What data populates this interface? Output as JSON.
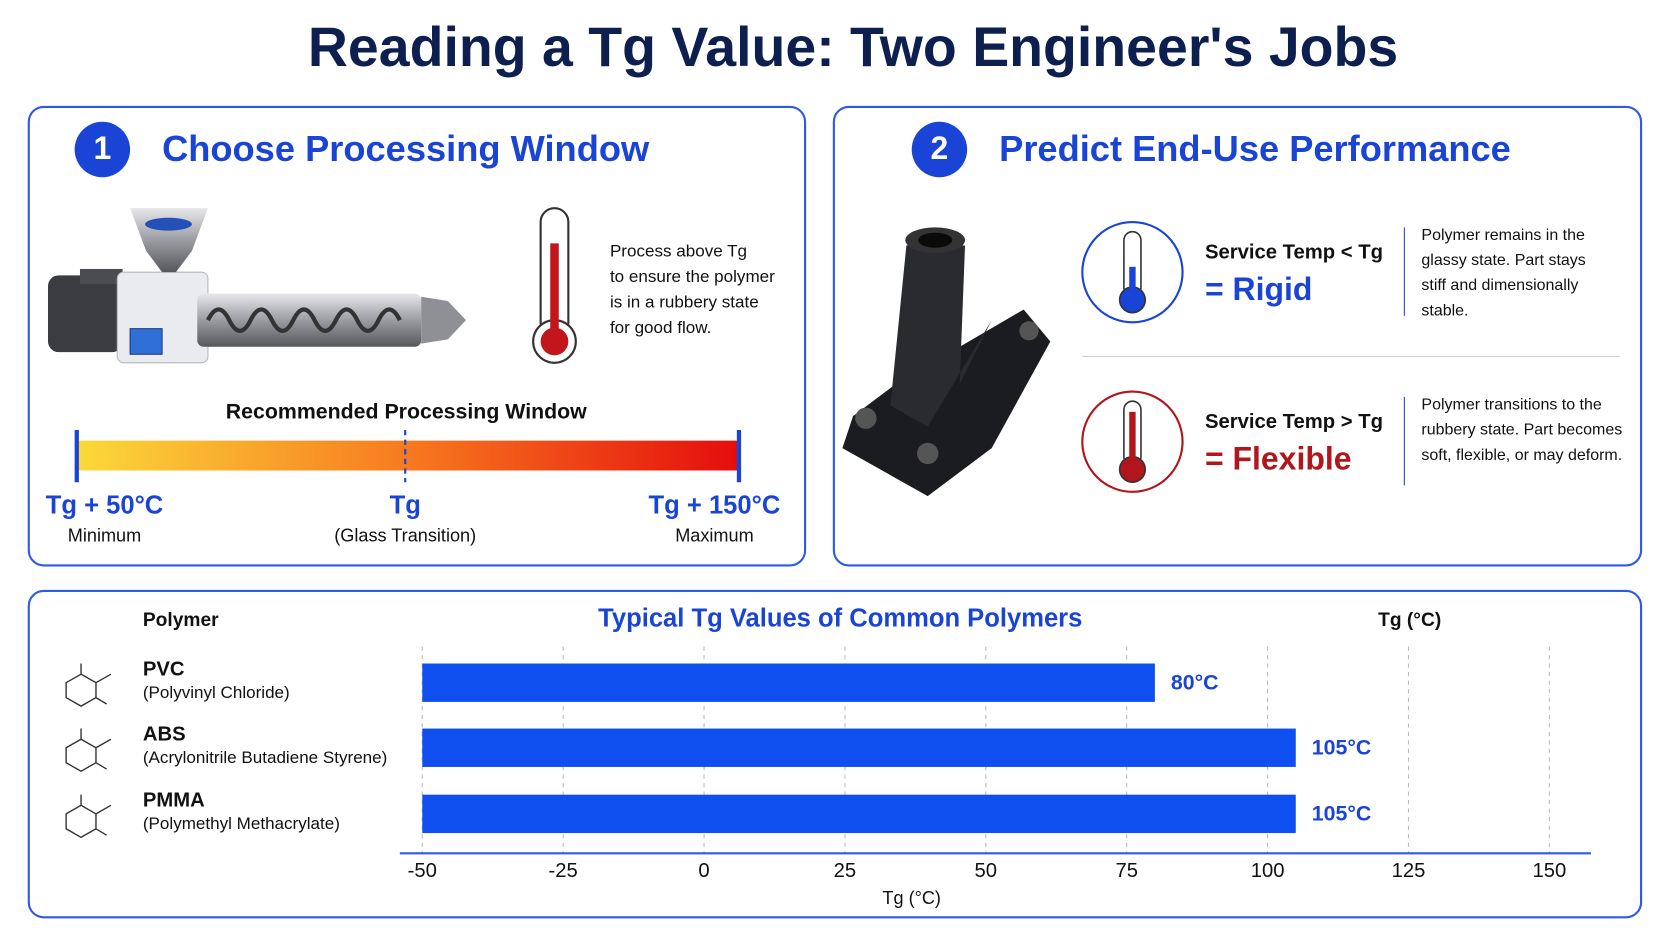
{
  "title": "Reading a Tg Value: Two Engineer's Jobs",
  "panel1": {
    "number": "1",
    "heading": "Choose Processing Window",
    "note": [
      "Process above Tg",
      "to ensure the polymer",
      "is in a rubbery state",
      "for good flow."
    ],
    "window_title": "Recommended Processing Window",
    "markers": [
      {
        "label": "Tg + 50°C",
        "caption": "Minimum"
      },
      {
        "label": "Tg",
        "caption": "(Glass Transition)"
      },
      {
        "label": "Tg + 150°C",
        "caption": "Maximum"
      }
    ]
  },
  "panel2": {
    "number": "2",
    "heading": "Predict End-Use Performance",
    "rows": [
      {
        "condition": "Service Temp < Tg",
        "result": "= Rigid",
        "text": [
          "Polymer remains in the",
          "glassy state. Part stays",
          "stiff and dimensionally",
          "stable."
        ]
      },
      {
        "condition": "Service Temp > Tg",
        "result": "= Flexible",
        "text": [
          "Polymer transitions to the",
          "rubbery state. Part becomes",
          "soft, flexible, or may deform."
        ]
      }
    ]
  },
  "chart_data": {
    "type": "hbar",
    "title": "Typical Tg Values of Common Polymers",
    "category_header": "Polymer",
    "value_header": "Tg (°C)",
    "categories": [
      "PVC",
      "ABS",
      "PMMA"
    ],
    "category_details": [
      "(Polyvinyl Chloride)",
      "(Acrylonitrile Butadiene Styrene)",
      "(Polymethyl Methacrylate)"
    ],
    "values": [
      80,
      105,
      105
    ],
    "value_labels": [
      "80°C",
      "105°C",
      "105°C"
    ],
    "color": "#0f4ff0",
    "xlim": [
      -50,
      150
    ],
    "xticks": [
      -50,
      -25,
      0,
      25,
      50,
      75,
      100,
      125,
      150
    ],
    "xlabel": "Tg (°C)",
    "grid": true
  }
}
